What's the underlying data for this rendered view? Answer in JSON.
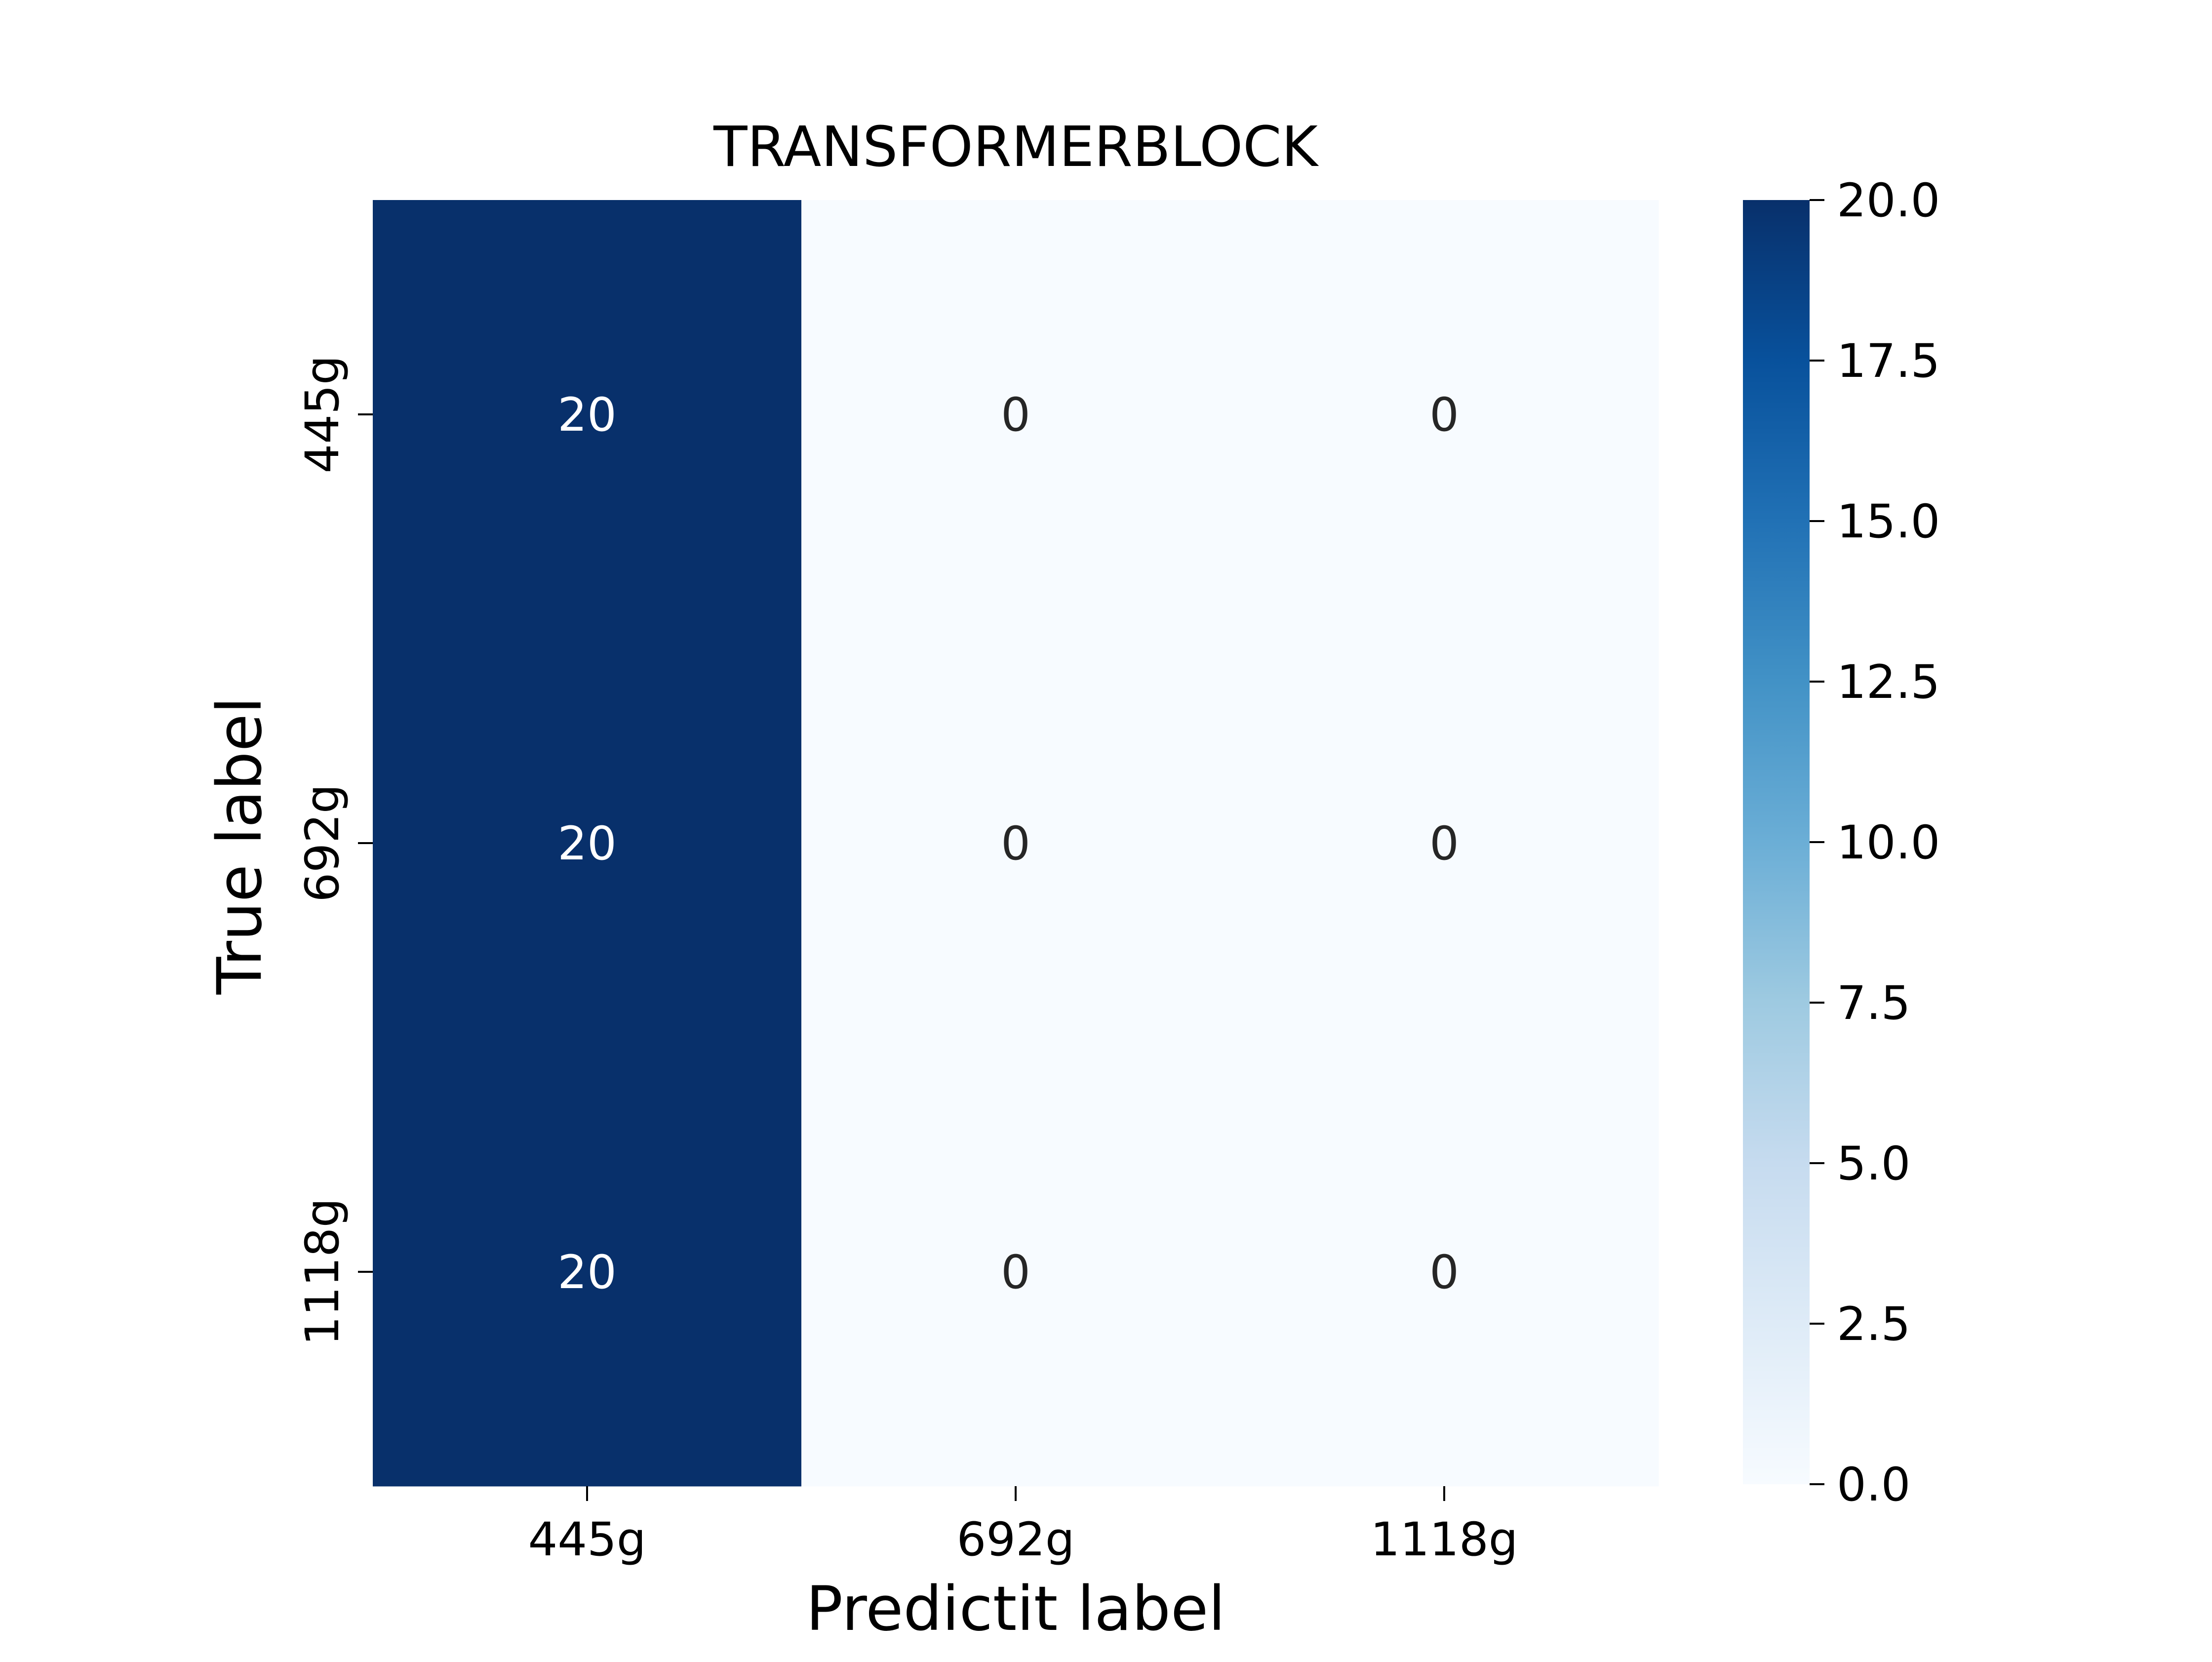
{
  "chart_data": {
    "type": "heatmap",
    "title": "TRANSFORMERBLOCK",
    "xlabel": "Predictit label",
    "ylabel": "True label",
    "x_categories": [
      "445g",
      "692g",
      "1118g"
    ],
    "y_categories": [
      "445g",
      "692g",
      "1118g"
    ],
    "values": [
      [
        20,
        0,
        0
      ],
      [
        20,
        0,
        0
      ],
      [
        20,
        0,
        0
      ]
    ],
    "colormap": "Blues",
    "colorbar": {
      "min": 0.0,
      "max": 20.0,
      "ticks": [
        "0.0",
        "2.5",
        "5.0",
        "7.5",
        "10.0",
        "12.5",
        "15.0",
        "17.5",
        "20.0"
      ]
    },
    "colors": {
      "low": "#f7fbff",
      "high": "#08306b",
      "text_on_dark": "#ffffff",
      "text_on_light": "#262626"
    }
  }
}
